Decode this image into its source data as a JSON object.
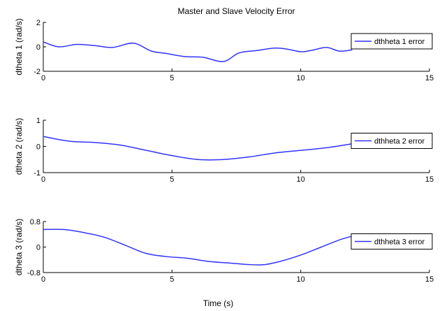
{
  "chart_data": [
    {
      "type": "line",
      "title": "Master and Slave Velocity Error",
      "ylabel": "dtheta 1 (rad/s)",
      "xlabel": "",
      "xlim": [
        0,
        15
      ],
      "ylim": [
        -2,
        2
      ],
      "xticks": [
        0,
        5,
        10,
        15
      ],
      "yticks": [
        2,
        0,
        -2
      ],
      "legend_position": "right",
      "series": [
        {
          "name": "dthheta 1 error",
          "color": "#3333ff",
          "x": [
            0,
            0.6,
            1.3,
            2.0,
            2.7,
            3.5,
            4.2,
            4.8,
            5.5,
            6.2,
            7.0,
            7.6,
            8.3,
            9.0,
            9.5,
            10.0,
            10.4,
            11.0,
            11.5,
            12.0
          ],
          "y": [
            0.4,
            0.0,
            0.2,
            0.1,
            -0.05,
            0.3,
            -0.35,
            -0.55,
            -0.8,
            -0.85,
            -1.2,
            -0.5,
            -0.3,
            -0.1,
            -0.2,
            -0.4,
            -0.3,
            -0.05,
            -0.35,
            -0.25
          ]
        }
      ]
    },
    {
      "type": "line",
      "title": "",
      "ylabel": "dtheta 2 (rad/s)",
      "xlabel": "",
      "xlim": [
        0,
        15
      ],
      "ylim": [
        -1,
        1
      ],
      "xticks": [
        0,
        5,
        10,
        15
      ],
      "yticks": [
        1,
        0,
        -1
      ],
      "legend_position": "right",
      "series": [
        {
          "name": "dthheta 2 error",
          "color": "#3333ff",
          "x": [
            0,
            1.0,
            2.0,
            3.0,
            4.0,
            5.0,
            6.0,
            7.0,
            8.0,
            9.0,
            10.0,
            11.0,
            12.0
          ],
          "y": [
            0.38,
            0.2,
            0.15,
            0.05,
            -0.15,
            -0.35,
            -0.5,
            -0.5,
            -0.4,
            -0.25,
            -0.15,
            -0.05,
            0.1
          ]
        }
      ]
    },
    {
      "type": "line",
      "title": "",
      "ylabel": "dtheta 3 (rad/s)",
      "xlabel": "Time (s)",
      "xlim": [
        0,
        15
      ],
      "ylim": [
        -0.8,
        0.8
      ],
      "xticks": [
        0,
        5,
        10,
        15
      ],
      "yticks": [
        0.8,
        0,
        -0.8
      ],
      "legend_position": "right",
      "series": [
        {
          "name": "dthheta 3 error",
          "color": "#3333ff",
          "x": [
            0,
            0.8,
            1.6,
            2.4,
            3.2,
            4.0,
            4.8,
            5.6,
            6.4,
            7.2,
            8.0,
            8.6,
            9.2,
            10.0,
            10.8,
            11.6,
            12.2
          ],
          "y": [
            0.55,
            0.55,
            0.45,
            0.3,
            0.05,
            -0.2,
            -0.3,
            -0.35,
            -0.45,
            -0.5,
            -0.55,
            -0.55,
            -0.45,
            -0.25,
            0.0,
            0.25,
            0.38
          ]
        }
      ]
    }
  ]
}
